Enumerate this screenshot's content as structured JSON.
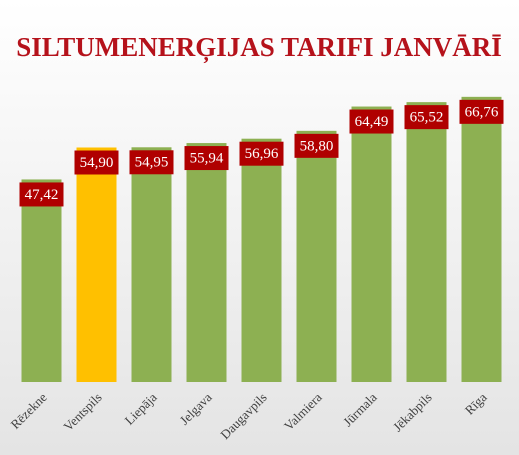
{
  "chart_data": {
    "type": "bar",
    "title": "SILTUMENERĢIJAS TARIFI JANVĀRĪ",
    "categories": [
      "Rēzekne",
      "Ventspils",
      "Liepāja",
      "Jelgava",
      "Daugavpils",
      "Valmiera",
      "Jūrmala",
      "Jēkabpils",
      "Rīga"
    ],
    "values": [
      47.42,
      54.9,
      54.95,
      55.94,
      56.96,
      58.8,
      64.49,
      65.52,
      66.76
    ],
    "value_labels": [
      "47,42",
      "54,90",
      "54,95",
      "55,94",
      "56,96",
      "58,80",
      "64,49",
      "65,52",
      "66,76"
    ],
    "colors": [
      "#8db052",
      "#ffc000",
      "#8db052",
      "#8db052",
      "#8db052",
      "#8db052",
      "#8db052",
      "#8db052",
      "#8db052"
    ],
    "label_color": "#b00000",
    "ylim": [
      0,
      70
    ]
  }
}
